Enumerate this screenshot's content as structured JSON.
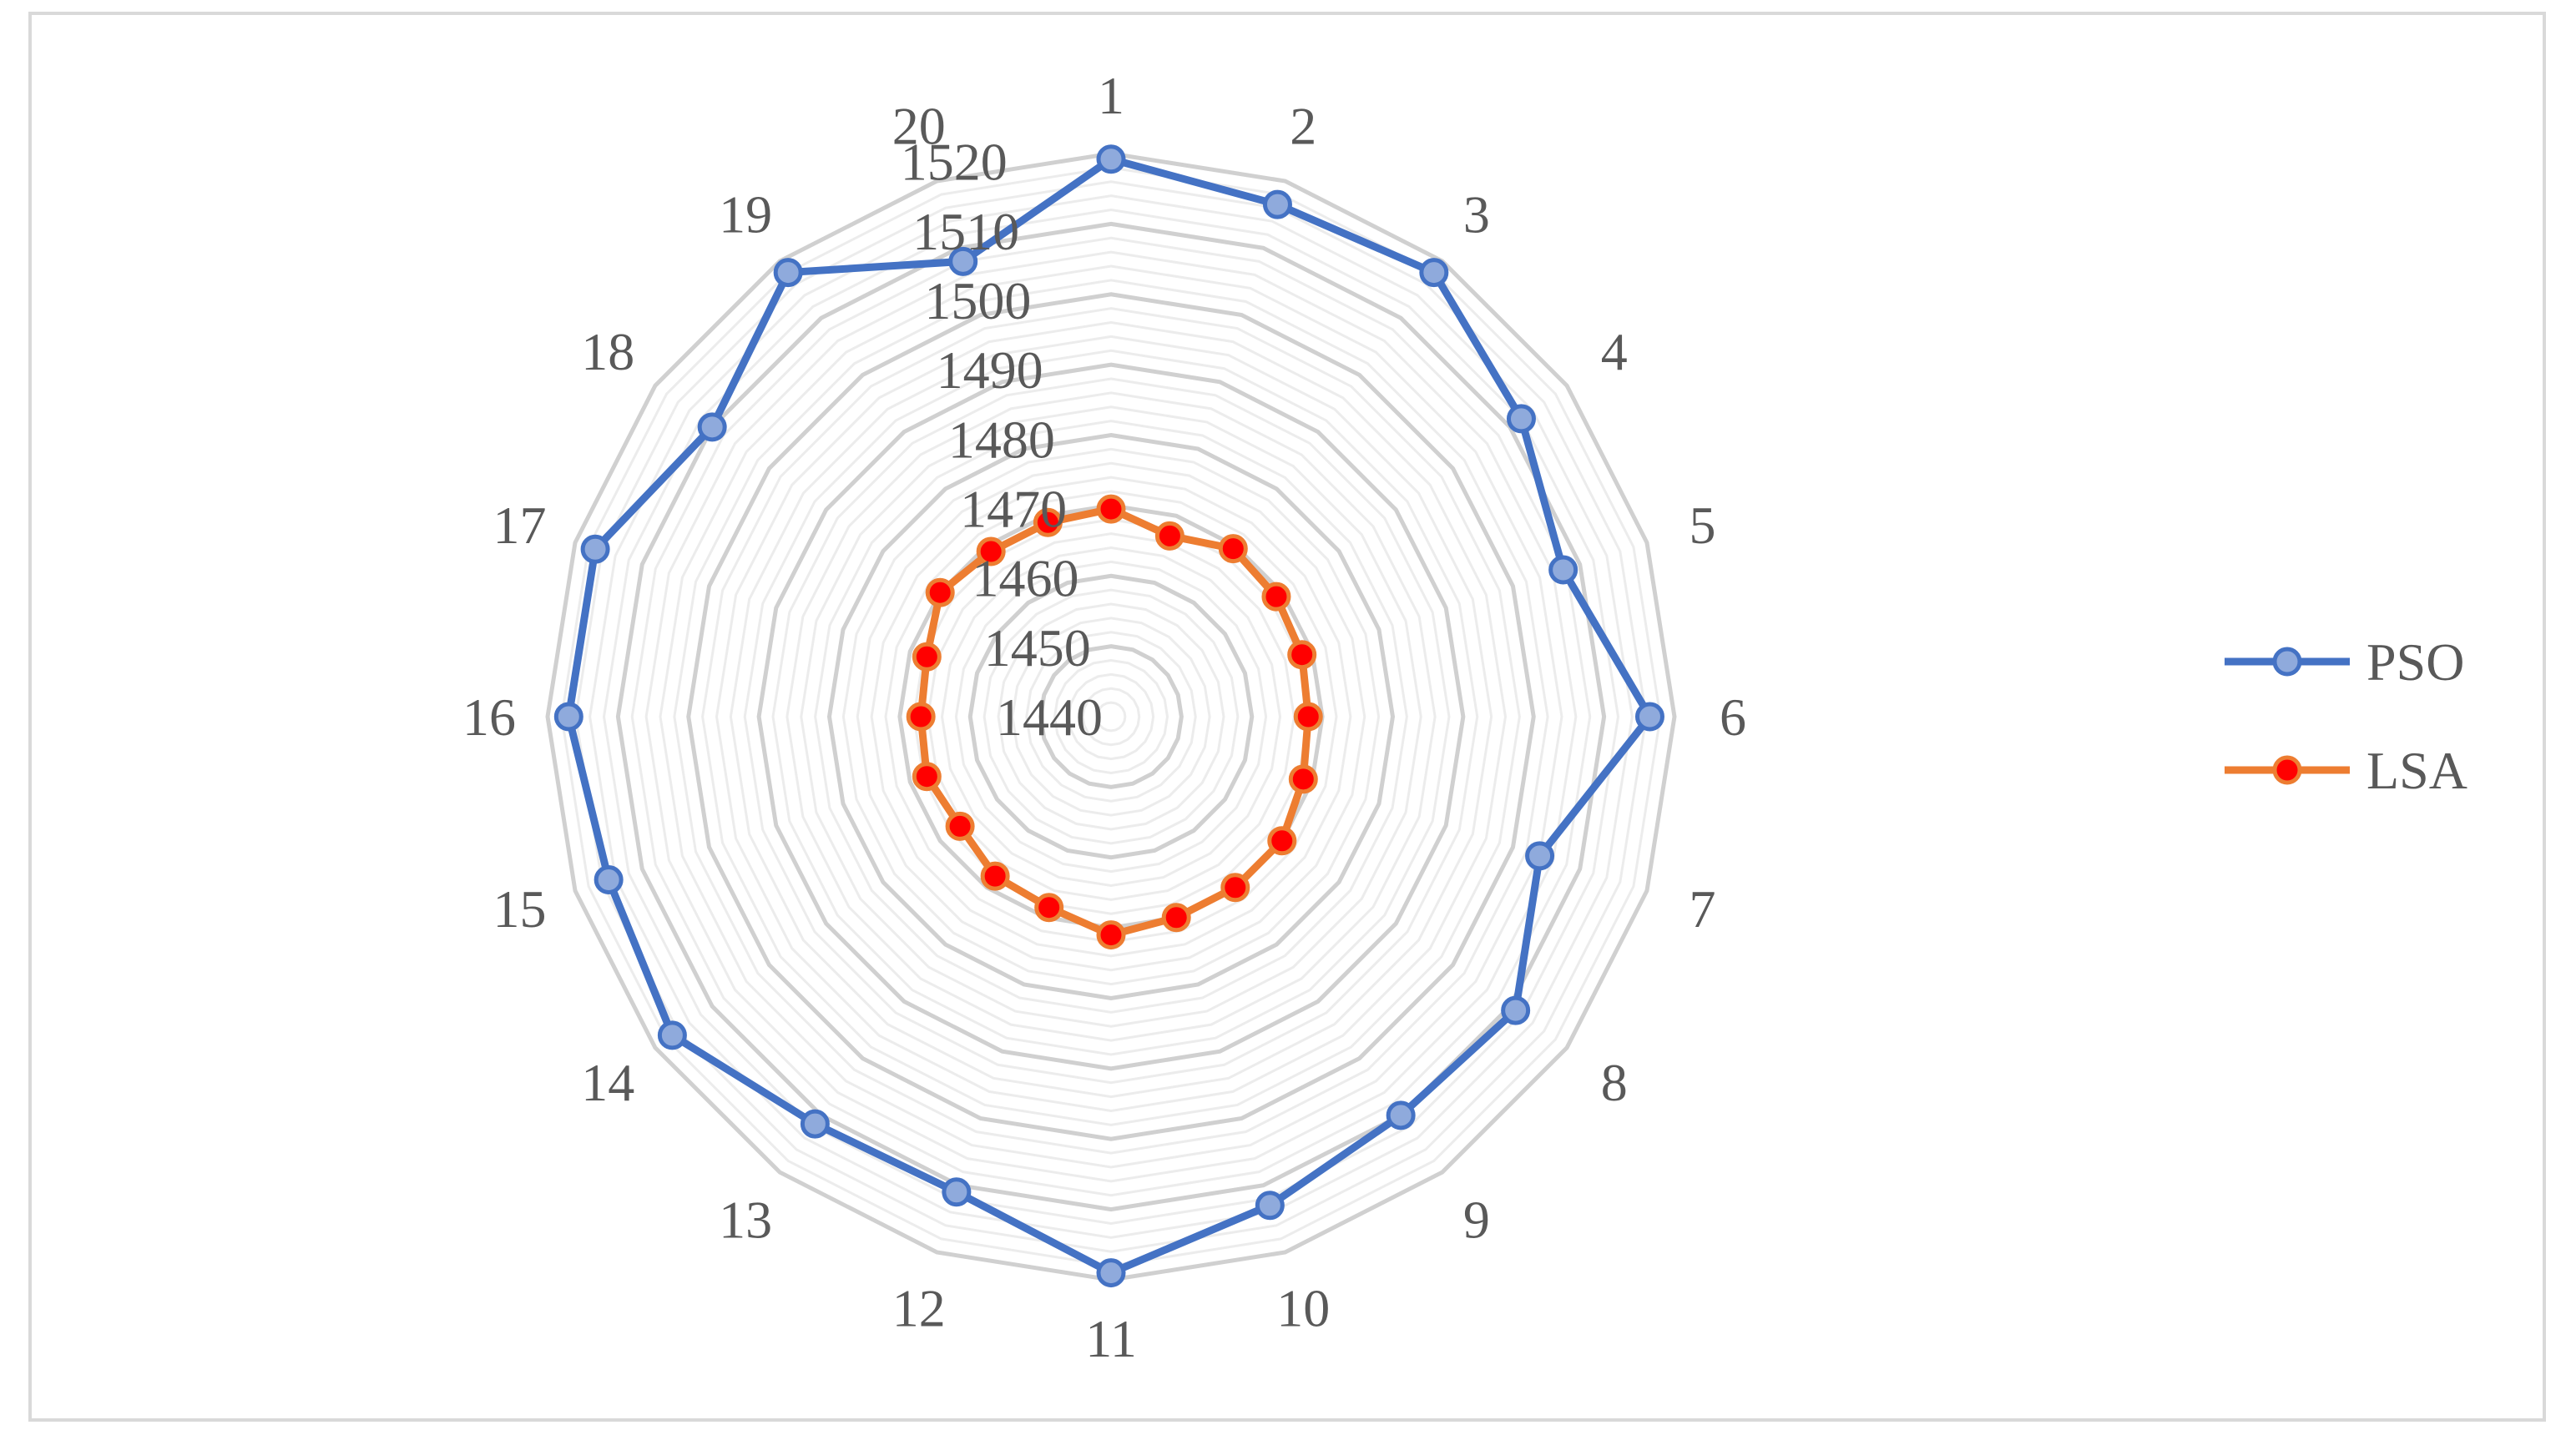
{
  "chart_data": {
    "type": "radar",
    "categories": [
      "1",
      "2",
      "3",
      "4",
      "5",
      "6",
      "7",
      "8",
      "9",
      "10",
      "11",
      "12",
      "13",
      "14",
      "15",
      "16",
      "17",
      "18",
      "19",
      "20"
    ],
    "r_ticks": [
      1440,
      1450,
      1460,
      1470,
      1480,
      1490,
      1500,
      1510,
      1520
    ],
    "rlim": [
      1440,
      1520
    ],
    "minor_step": 2,
    "grid": true,
    "legend_position": "right",
    "series": [
      {
        "name": "PSO",
        "color": "#4472c4",
        "marker_fill": "#8faadc",
        "values": [
          1519.2,
          1516.5,
          1518,
          1512,
          1507.5,
          1516.5,
          1504,
          1511,
          1510,
          1513,
          1519,
          1511,
          1511.5,
          1517,
          1515,
          1517,
          1517,
          1510,
          1518,
          1508
        ]
      },
      {
        "name": "LSA",
        "color": "#ed7d31",
        "marker_fill": "#ff0000",
        "values": [
          1469.5,
          1467,
          1469.5,
          1469,
          1468.5,
          1468,
          1468.7,
          1470,
          1470,
          1470,
          1471,
          1468.5,
          1468,
          1466.5,
          1467.5,
          1467,
          1467.5,
          1470,
          1469,
          1469
        ]
      }
    ]
  }
}
